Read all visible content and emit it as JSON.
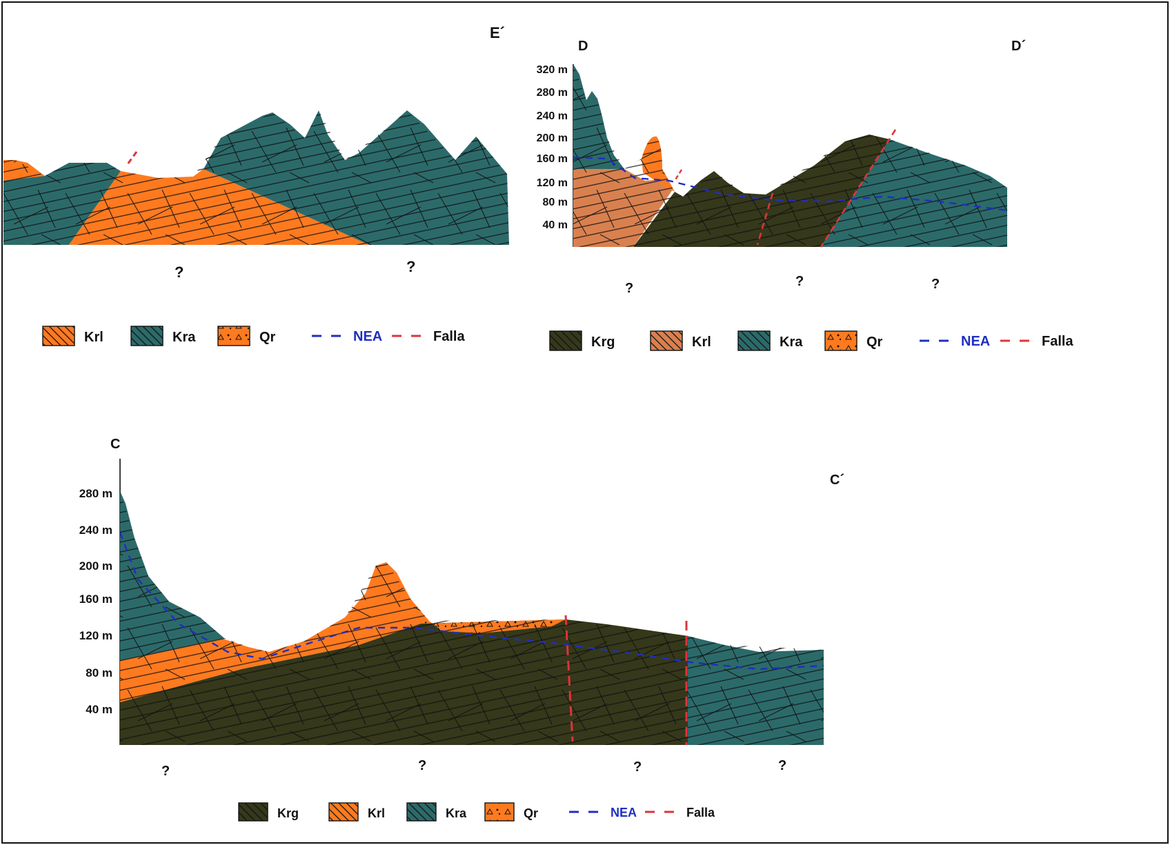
{
  "colors": {
    "Krg": "#35381a",
    "Krl": "#ff7a1f",
    "Krl_dd": "#d9804f",
    "Kra": "#2c6a6a",
    "Qr": "#ff7a1f",
    "NEA": "#1f2fbf",
    "Falla": "#e0333a"
  },
  "panel_e": {
    "end_label": "E´",
    "unknowns": [
      "?",
      "?"
    ],
    "legend": [
      {
        "code": "Krl",
        "kind": "Krl",
        "label": "Krl"
      },
      {
        "code": "Kra",
        "kind": "Kra",
        "label": "Kra"
      },
      {
        "code": "Qr",
        "kind": "Qr",
        "label": "Qr"
      },
      {
        "code": "NEA",
        "kind": "line-NEA",
        "label": "NEA"
      },
      {
        "code": "Falla",
        "kind": "line-Falla",
        "label": "Falla"
      }
    ]
  },
  "panel_d": {
    "start_label": "D",
    "end_label": "D´",
    "axis_ticks": [
      "320 m",
      "280 m",
      "240 m",
      "200 m",
      "160 m",
      "120 m",
      "80 m",
      "40 m"
    ],
    "unknowns": [
      "?",
      "?",
      "?"
    ],
    "legend": [
      {
        "code": "Krg",
        "kind": "Krg",
        "label": "Krg"
      },
      {
        "code": "Krl",
        "kind": "Krl_dd",
        "label": "Krl"
      },
      {
        "code": "Kra",
        "kind": "Kra",
        "label": "Kra"
      },
      {
        "code": "Qr",
        "kind": "Qr",
        "label": "Qr"
      },
      {
        "code": "NEA",
        "kind": "line-NEA",
        "label": "NEA"
      },
      {
        "code": "Falla",
        "kind": "line-Falla",
        "label": "Falla"
      }
    ]
  },
  "panel_c": {
    "start_label": "C",
    "end_label": "C´",
    "axis_ticks": [
      "280 m",
      "240 m",
      "200 m",
      "160 m",
      "120 m",
      "80 m",
      "40 m"
    ],
    "unknowns": [
      "?",
      "?",
      "?",
      "?"
    ],
    "legend": [
      {
        "code": "Krg",
        "kind": "Krg",
        "label": "Krg"
      },
      {
        "code": "Krl",
        "kind": "Krl",
        "label": "Krl"
      },
      {
        "code": "Kra",
        "kind": "Kra",
        "label": "Kra"
      },
      {
        "code": "Qr",
        "kind": "Qr",
        "label": "Qr"
      },
      {
        "code": "NEA",
        "kind": "line-NEA",
        "label": "NEA"
      },
      {
        "code": "Falla",
        "kind": "line-Falla",
        "label": "Falla"
      }
    ]
  }
}
